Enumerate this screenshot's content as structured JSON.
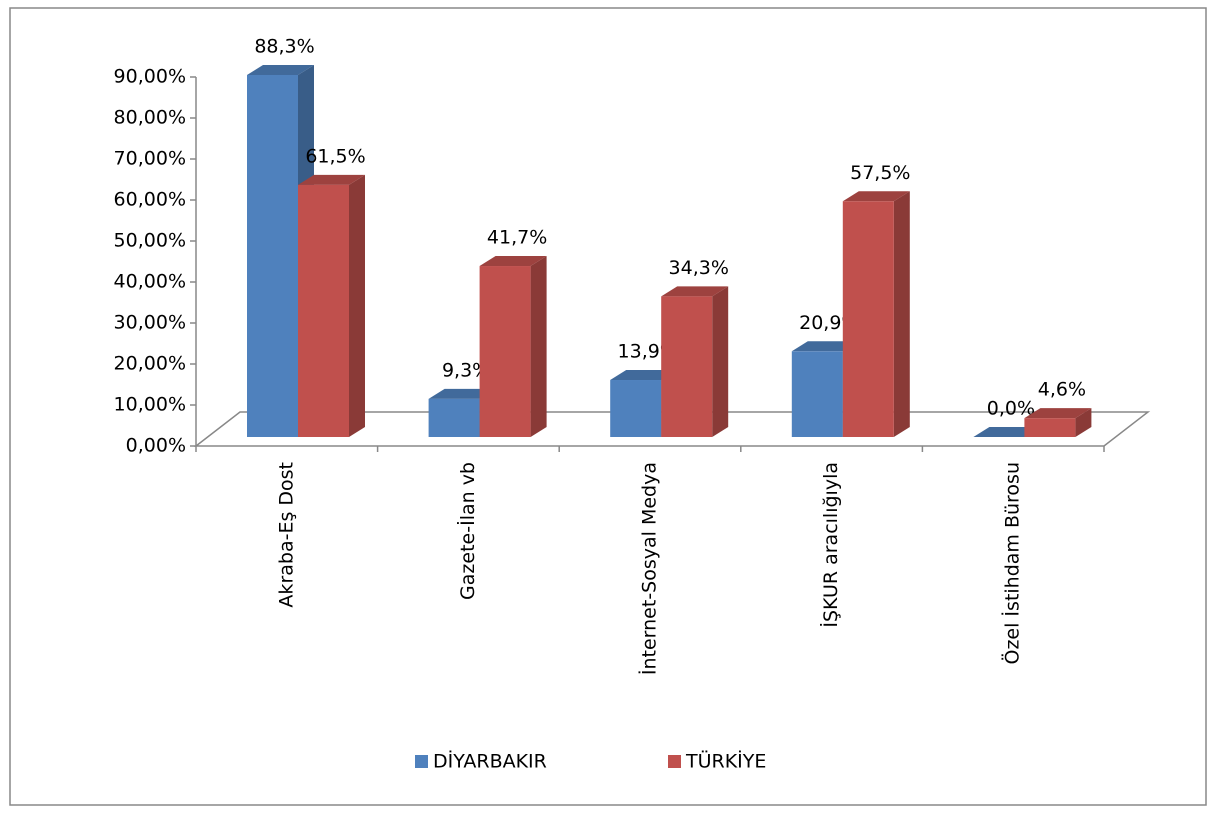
{
  "chart_data": {
    "type": "bar3d",
    "categories": [
      "Akraba-Eş Dost",
      "Gazete-İlan vb",
      "İnternet-Sosyal Medya",
      "İŞKUR aracılığıyla",
      "Özel İstihdam Bürosu"
    ],
    "series": [
      {
        "name": "DİYARBAKIR",
        "color": "#4f81bd",
        "values": [
          88.3,
          9.3,
          13.9,
          20.9,
          0.0
        ],
        "value_labels": [
          "88,3%",
          "9,3%",
          "13,9%",
          "20,9%",
          "0,0%"
        ]
      },
      {
        "name": "TÜRKİYE",
        "color": "#c0504d",
        "values": [
          61.5,
          41.7,
          34.3,
          57.5,
          4.6
        ],
        "value_labels": [
          "61,5%",
          "41,7%",
          "34,3%",
          "57,5%",
          "4,6%"
        ]
      }
    ],
    "ylim": [
      0,
      90
    ],
    "yticks": [
      {
        "value": 0,
        "label": "0,00%"
      },
      {
        "value": 10,
        "label": "10,00%"
      },
      {
        "value": 20,
        "label": "20,00%"
      },
      {
        "value": 30,
        "label": "30,00%"
      },
      {
        "value": 40,
        "label": "40,00%"
      },
      {
        "value": 50,
        "label": "50,00%"
      },
      {
        "value": 60,
        "label": "60,00%"
      },
      {
        "value": 70,
        "label": "70,00%"
      },
      {
        "value": 80,
        "label": "80,00%"
      },
      {
        "value": 90,
        "label": "90,00%"
      }
    ],
    "grid": false,
    "legend": "bottom"
  }
}
